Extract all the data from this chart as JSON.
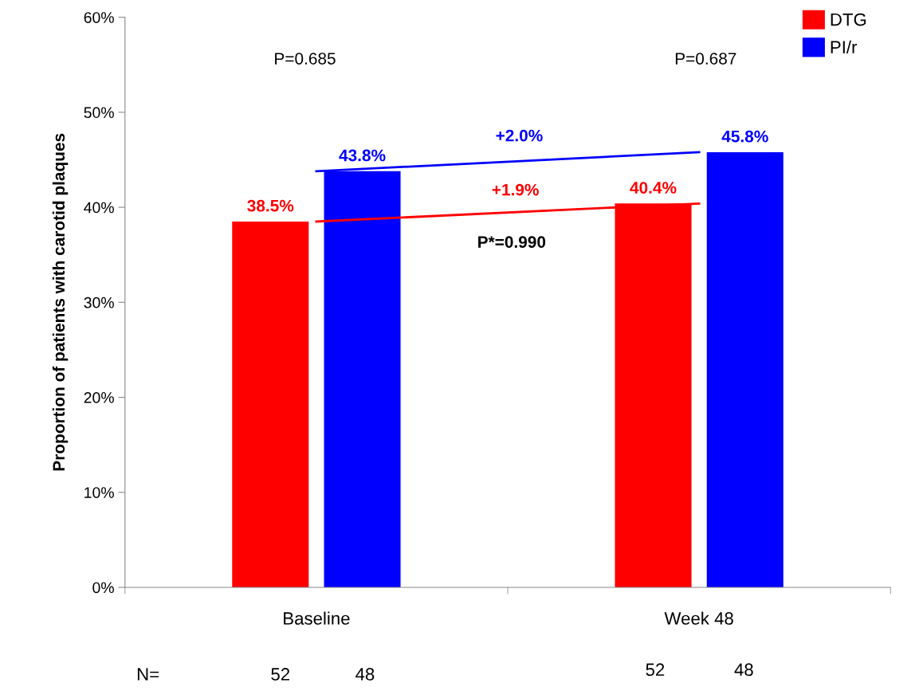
{
  "chart_data": {
    "type": "bar",
    "categories": [
      "Baseline",
      "Week 48"
    ],
    "ylabel": "Proportion of patients with carotid plaques",
    "series": [
      {
        "name": "DTG",
        "color": "#ff0000",
        "values": [
          38.5,
          40.4
        ],
        "value_labels": [
          "38.5%",
          "40.4%"
        ]
      },
      {
        "name": "PI/r",
        "color": "#0000ff",
        "values": [
          43.8,
          45.8
        ],
        "value_labels": [
          "43.8%",
          "45.8%"
        ]
      },
      {
        "type": "line",
        "color": "#ff0000",
        "values": [
          38.5,
          40.4
        ]
      },
      {
        "type": "line",
        "color": "#0000ff",
        "values": [
          43.8,
          45.8
        ]
      }
    ],
    "ylim": [
      0,
      60
    ],
    "yticks": [
      {
        "value": 0,
        "label": "0%"
      },
      {
        "value": 10,
        "label": "10%"
      },
      {
        "value": 20,
        "label": "20%"
      },
      {
        "value": 30,
        "label": "30%"
      },
      {
        "value": 40,
        "label": "40%"
      },
      {
        "value": 50,
        "label": "50%"
      },
      {
        "value": 60,
        "label": "60%"
      }
    ],
    "legend": "top right",
    "grid": false,
    "annotations": [
      "P=0.685",
      "P=0.687",
      "+2.0%",
      "+1.9%",
      "P*=0.990",
      "N=",
      "52",
      "48",
      "52",
      "48"
    ]
  }
}
